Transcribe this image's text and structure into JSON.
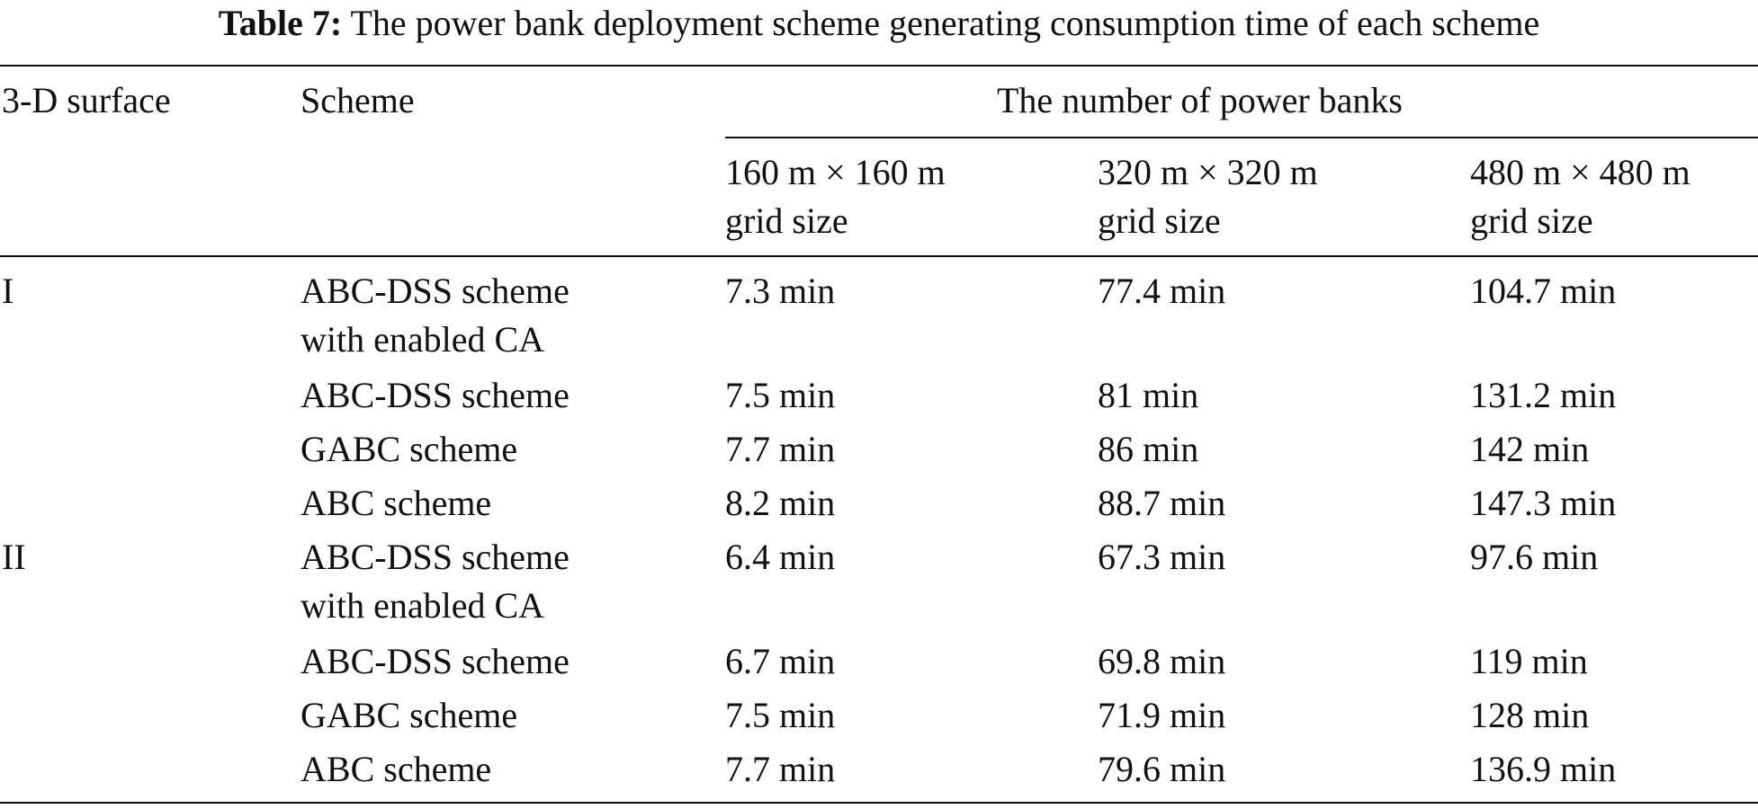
{
  "caption": {
    "label": "Table 7:",
    "text": "The power bank deployment scheme generating consumption time of each scheme"
  },
  "headers": {
    "surface": "3-D surface",
    "scheme": "Scheme",
    "group": "The number of power banks",
    "col1_line1": "160 m × 160 m",
    "col1_line2": "grid size",
    "col2_line1": "320 m × 320 m",
    "col2_line2": "grid size",
    "col3_line1": "480 m × 480 m",
    "col3_line2": "grid size"
  },
  "rows": [
    {
      "surface": "I",
      "scheme_l1": "ABC-DSS scheme",
      "scheme_l2": "with enabled CA",
      "c1": "7.3 min",
      "c2": "77.4 min",
      "c3": "104.7 min"
    },
    {
      "surface": "",
      "scheme_l1": "ABC-DSS scheme",
      "scheme_l2": "",
      "c1": "7.5 min",
      "c2": "81 min",
      "c3": "131.2 min"
    },
    {
      "surface": "",
      "scheme_l1": "GABC scheme",
      "scheme_l2": "",
      "c1": "7.7 min",
      "c2": "86 min",
      "c3": "142 min"
    },
    {
      "surface": "",
      "scheme_l1": "ABC scheme",
      "scheme_l2": "",
      "c1": "8.2 min",
      "c2": "88.7 min",
      "c3": "147.3 min"
    },
    {
      "surface": "II",
      "scheme_l1": "ABC-DSS scheme",
      "scheme_l2": "with enabled CA",
      "c1": "6.4 min",
      "c2": "67.3 min",
      "c3": "97.6 min"
    },
    {
      "surface": "",
      "scheme_l1": "ABC-DSS scheme",
      "scheme_l2": "",
      "c1": "6.7 min",
      "c2": "69.8 min",
      "c3": "119 min"
    },
    {
      "surface": "",
      "scheme_l1": "GABC scheme",
      "scheme_l2": "",
      "c1": "7.5 min",
      "c2": "71.9 min",
      "c3": "128 min"
    },
    {
      "surface": "",
      "scheme_l1": "ABC scheme",
      "scheme_l2": "",
      "c1": "7.7 min",
      "c2": "79.6 min",
      "c3": "136.9 min"
    }
  ]
}
